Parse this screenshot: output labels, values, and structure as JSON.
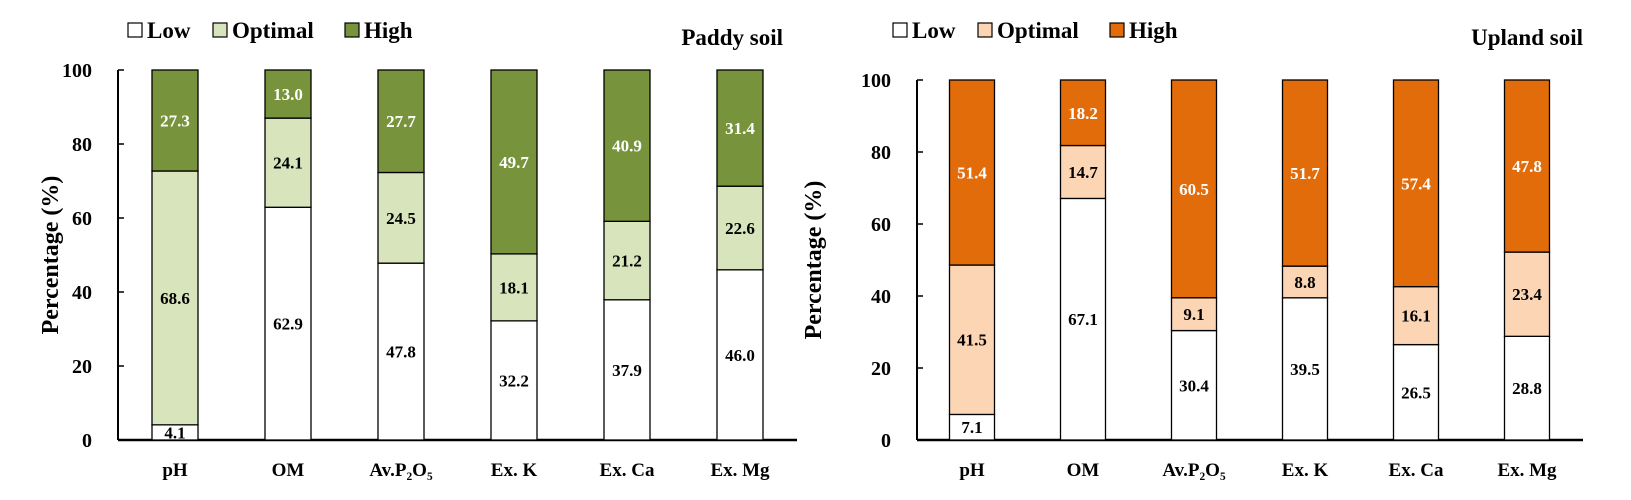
{
  "chart_data": [
    {
      "type": "bar",
      "stacked": true,
      "title": "Paddy soil",
      "xlabel": "",
      "ylabel": "Percentage (%)",
      "ylim": [
        0,
        100
      ],
      "yticks": [
        0,
        20,
        40,
        60,
        80,
        100
      ],
      "grid": false,
      "legend_position": "top",
      "categories": [
        "pH",
        "OM",
        "Av.P₂O₅",
        "Ex. K",
        "Ex. Ca",
        "Ex. Mg"
      ],
      "series": [
        {
          "name": "Low",
          "color": "#ffffff",
          "label_color": "#000000",
          "values": [
            4.1,
            62.9,
            47.8,
            32.2,
            37.9,
            46.0
          ]
        },
        {
          "name": "Optimal",
          "color": "#d8e4bc",
          "label_color": "#000000",
          "values": [
            68.6,
            24.1,
            24.5,
            18.1,
            21.2,
            22.6
          ]
        },
        {
          "name": "High",
          "color": "#77933c",
          "label_color": "#ffffff",
          "values": [
            27.3,
            13.0,
            27.7,
            49.7,
            40.9,
            31.4
          ]
        }
      ]
    },
    {
      "type": "bar",
      "stacked": true,
      "title": "Upland soil",
      "xlabel": "",
      "ylabel": "Percentage (%)",
      "ylim": [
        0,
        100
      ],
      "yticks": [
        0,
        20,
        40,
        60,
        80,
        100
      ],
      "grid": false,
      "legend_position": "top",
      "categories": [
        "pH",
        "OM",
        "Av.P₂O₅",
        "Ex. K",
        "Ex. Ca",
        "Ex. Mg"
      ],
      "series": [
        {
          "name": "Low",
          "color": "#ffffff",
          "label_color": "#000000",
          "values": [
            7.1,
            67.1,
            30.4,
            39.5,
            26.5,
            28.8
          ]
        },
        {
          "name": "Optimal",
          "color": "#fcd5b5",
          "label_color": "#000000",
          "values": [
            41.5,
            14.7,
            9.1,
            8.8,
            16.1,
            23.4
          ]
        },
        {
          "name": "High",
          "color": "#e36c0a",
          "label_color": "#ffffff",
          "values": [
            51.4,
            18.2,
            60.5,
            51.7,
            57.4,
            47.8
          ]
        }
      ]
    }
  ]
}
